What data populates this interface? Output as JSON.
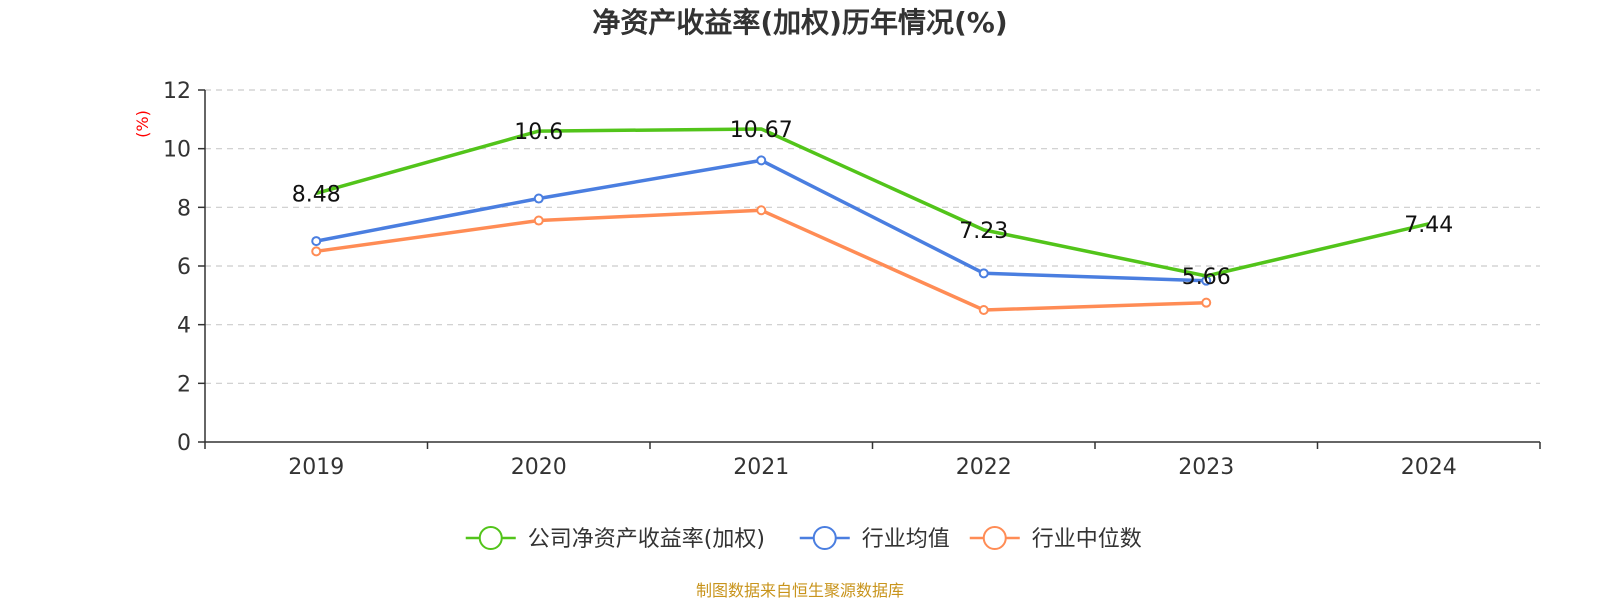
{
  "chart_data": {
    "type": "line",
    "title": "净资产收益率(加权)历年情况(%)",
    "ylabel": "(%)",
    "xlabel": "",
    "categories": [
      "2019",
      "2020",
      "2021",
      "2022",
      "2023",
      "2024"
    ],
    "ylim": [
      0,
      12
    ],
    "yticks": [
      0,
      2,
      4,
      6,
      8,
      10,
      12
    ],
    "grid": true,
    "legend_position": "bottom-center",
    "series": [
      {
        "name": "公司净资产收益率(加权)",
        "color": "#52c41a",
        "values": [
          8.48,
          10.6,
          10.67,
          7.23,
          5.66,
          7.44
        ],
        "labels": [
          "8.48",
          "10.6",
          "10.67",
          "7.23",
          "5.66",
          "7.44"
        ],
        "show_labels": true,
        "show_markers": false
      },
      {
        "name": "行业均值",
        "color": "#4a7ee0",
        "values": [
          6.85,
          8.3,
          9.6,
          5.75,
          5.5,
          null
        ],
        "show_labels": false,
        "show_markers": true
      },
      {
        "name": "行业中位数",
        "color": "#ff8c55",
        "values": [
          6.5,
          7.55,
          7.9,
          4.5,
          4.75,
          null
        ],
        "show_labels": false,
        "show_markers": true
      }
    ],
    "source_note": "制图数据来自恒生聚源数据库",
    "ylabel_color": "#ff0000",
    "source_color": "#c8941c"
  }
}
